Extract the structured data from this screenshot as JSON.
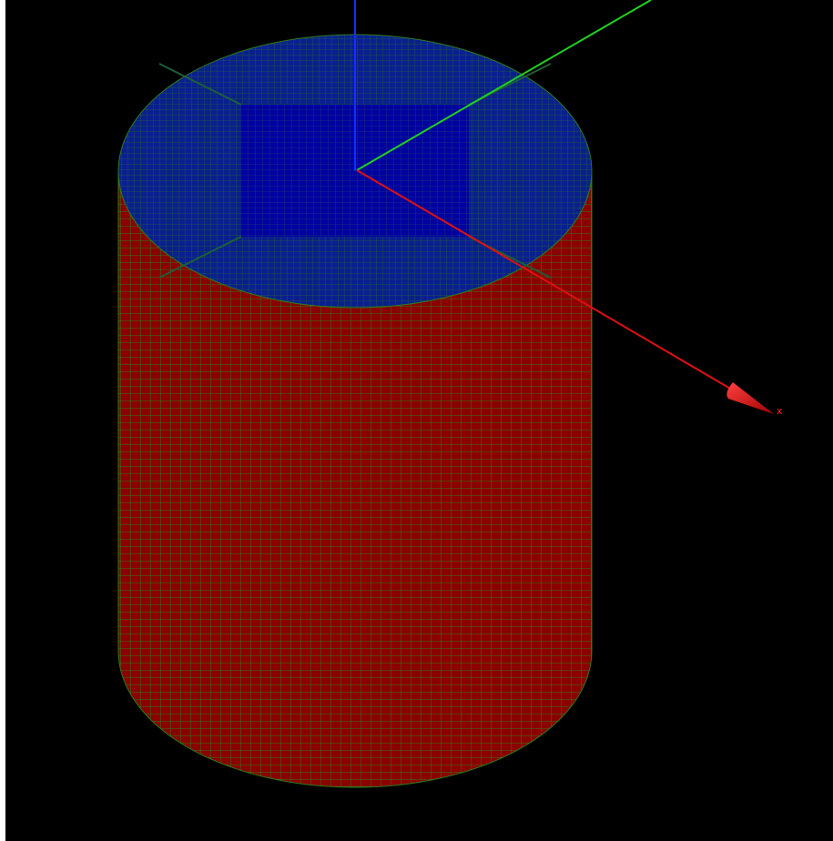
{
  "axes": {
    "x": {
      "label": "x"
    }
  }
}
